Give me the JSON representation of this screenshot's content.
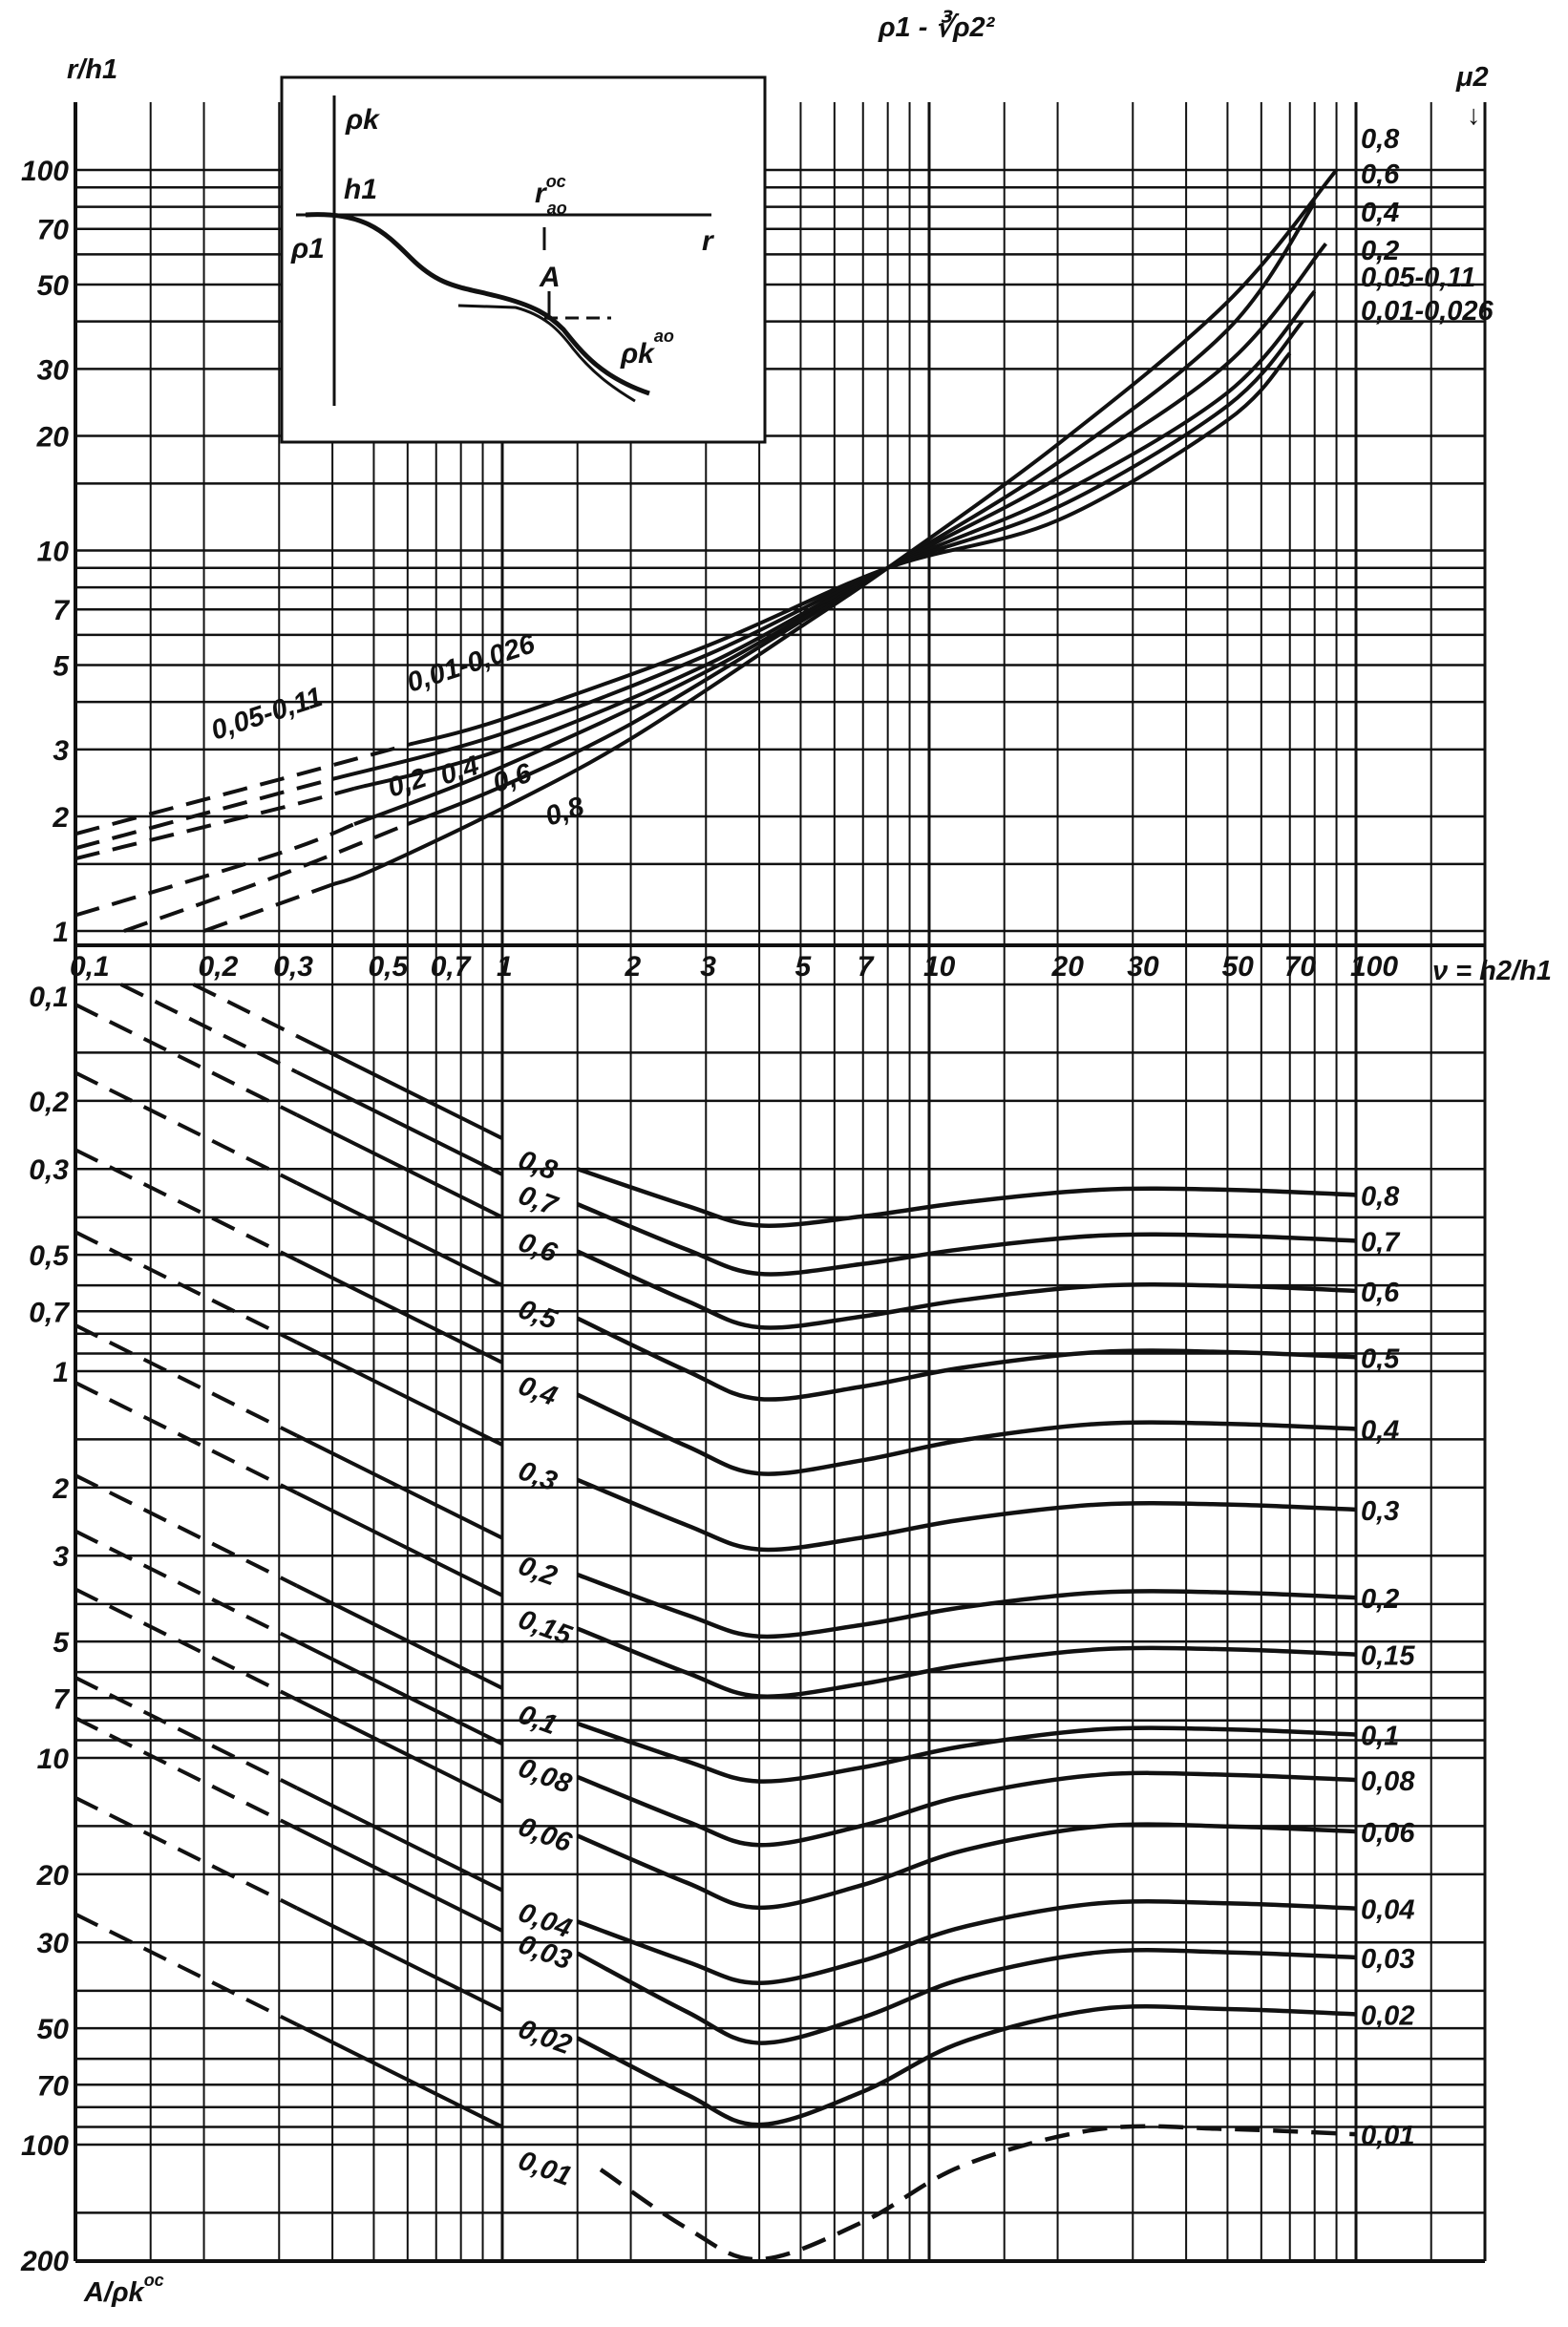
{
  "title": "ρ1 - ∛ρ2²",
  "chart_data": [
    {
      "type": "line",
      "panel": "top",
      "title": "ρ1 - ∛ρ2²",
      "xlabel": "ν = h2/h1",
      "ylabel": "r/h1",
      "legend_title": "μ2",
      "xscale": "log",
      "yscale": "log",
      "xlim": [
        0.1,
        100
      ],
      "ylim": [
        1,
        100
      ],
      "x_ticks": [
        "0,1",
        "0,2",
        "0,3",
        "0,5",
        "0,7",
        "1",
        "2",
        "3",
        "5",
        "7",
        "10",
        "20",
        "30",
        "50",
        "70",
        "100"
      ],
      "x_tick_values": [
        0.1,
        0.2,
        0.3,
        0.5,
        0.7,
        1,
        2,
        3,
        5,
        7,
        10,
        20,
        30,
        50,
        70,
        100
      ],
      "y_ticks": [
        "100",
        "70",
        "50",
        "30",
        "20",
        "10",
        "7",
        "5",
        "3",
        "2",
        "1"
      ],
      "y_tick_values": [
        100,
        70,
        50,
        30,
        20,
        10,
        7,
        5,
        3,
        2,
        1
      ],
      "grid": true,
      "series": [
        {
          "name": "0,8",
          "x": [
            0.2,
            0.5,
            1,
            2,
            5,
            8,
            20,
            50,
            90
          ],
          "y": [
            1,
            1.45,
            2.1,
            3.2,
            6.3,
            9,
            19,
            45,
            100
          ],
          "dashed_below": 0.4
        },
        {
          "name": "0,6",
          "x": [
            0.13,
            0.3,
            1,
            2,
            5,
            8,
            20,
            50,
            80
          ],
          "y": [
            1,
            1.4,
            2.4,
            3.5,
            6.5,
            9,
            17,
            38,
            82
          ],
          "dashed_below": 0.6
        },
        {
          "name": "0,4",
          "x": [
            0.1,
            0.3,
            1,
            3,
            8,
            20,
            50,
            85
          ],
          "y": [
            1.1,
            1.6,
            2.7,
            4.8,
            9,
            15.5,
            31,
            64
          ],
          "dashed_below": 0.45
        },
        {
          "name": "0,2",
          "x": [
            0.1,
            0.3,
            1,
            3,
            8,
            20,
            50,
            80
          ],
          "y": [
            1.55,
            2.1,
            3.0,
            5.0,
            9,
            14,
            26,
            48
          ],
          "dashed_below": 0.45
        },
        {
          "name": "0,05-0,11",
          "x": [
            0.1,
            0.3,
            1,
            3,
            8,
            20,
            50,
            75
          ],
          "y": [
            1.65,
            2.3,
            3.3,
            5.3,
            9,
            13,
            24,
            40
          ],
          "dashed_below": 0.4
        },
        {
          "name": "0,01-0,026",
          "x": [
            0.1,
            0.3,
            1,
            3,
            8,
            20,
            50,
            70
          ],
          "y": [
            1.8,
            2.5,
            3.6,
            5.6,
            9,
            12,
            22,
            33
          ],
          "dashed_below": 0.6
        }
      ]
    },
    {
      "type": "line",
      "panel": "bottom",
      "xlabel": "ν = h2/h1",
      "ylabel": "A/ρk^oc",
      "xscale": "log",
      "yscale": "log",
      "xlim": [
        0.1,
        100
      ],
      "ylim": [
        0.1,
        200
      ],
      "y_ticks": [
        "0,1",
        "0,2",
        "0,3",
        "0,5",
        "0,7",
        "1",
        "2",
        "3",
        "5",
        "7",
        "10",
        "20",
        "30",
        "50",
        "70",
        "100",
        "200"
      ],
      "y_tick_values": [
        0.1,
        0.2,
        0.3,
        0.5,
        0.7,
        1,
        2,
        3,
        5,
        7,
        10,
        20,
        30,
        50,
        70,
        100,
        200
      ],
      "grid": true,
      "left_line_slope": 0.55,
      "series": [
        {
          "name": "0,8",
          "start": 0.3,
          "min": 0.42,
          "end": 0.35,
          "left_end": 0.25
        },
        {
          "name": "0,7",
          "start": 0.37,
          "min": 0.56,
          "end": 0.46,
          "left_end": 0.31
        },
        {
          "name": "0,6",
          "start": 0.49,
          "min": 0.77,
          "end": 0.62,
          "left_end": 0.4
        },
        {
          "name": "0,5",
          "start": 0.73,
          "min": 1.18,
          "end": 0.92,
          "left_end": 0.6
        },
        {
          "name": "0,4",
          "start": 1.15,
          "min": 1.84,
          "end": 1.41,
          "left_end": 0.95
        },
        {
          "name": "0,3",
          "start": 1.91,
          "min": 2.89,
          "end": 2.28,
          "left_end": 1.55
        },
        {
          "name": "0,2",
          "start": 3.36,
          "min": 4.85,
          "end": 3.85,
          "left_end": 2.7
        },
        {
          "name": "0,15",
          "start": 4.63,
          "min": 6.93,
          "end": 5.4,
          "left_end": 3.8
        },
        {
          "name": "0,1",
          "start": 8.15,
          "min": 11.5,
          "end": 8.7,
          "left_end": 6.6
        },
        {
          "name": "0,08",
          "start": 11.2,
          "min": 16.8,
          "end": 11.4,
          "left_end": 9.2
        },
        {
          "name": "0,06",
          "start": 15.9,
          "min": 24.4,
          "end": 15.5,
          "left_end": 13
        },
        {
          "name": "0,04",
          "start": 26.5,
          "min": 38.2,
          "end": 24.5,
          "left_end": 22
        },
        {
          "name": "0,03",
          "start": 32,
          "min": 54.6,
          "end": 32.8,
          "left_end": 28
        },
        {
          "name": "0,02",
          "start": 53,
          "min": 88.8,
          "end": 46,
          "left_end": 45
        },
        {
          "name": "0,01",
          "start": 116,
          "min": 198,
          "end": 94,
          "left_end": 90,
          "dashed": true
        }
      ]
    }
  ],
  "labels": {
    "y_axis_top": "r/h1",
    "y_axis_bottom": "A/ρk",
    "y_axis_bottom_sup": "oc",
    "x_axis": "ν = h2/h1",
    "mu": "μ2",
    "mu_arrow": "↓"
  },
  "inset": {
    "rho_k": "ρk",
    "h1": "h1",
    "r_ao": "r",
    "r_ao_sup": "oc",
    "r_ao_sub": "ao",
    "rho_1": "ρ1",
    "r": "r",
    "A": "A",
    "rho_k_ao": "ρk",
    "rho_k_ao_sup": "ao"
  }
}
